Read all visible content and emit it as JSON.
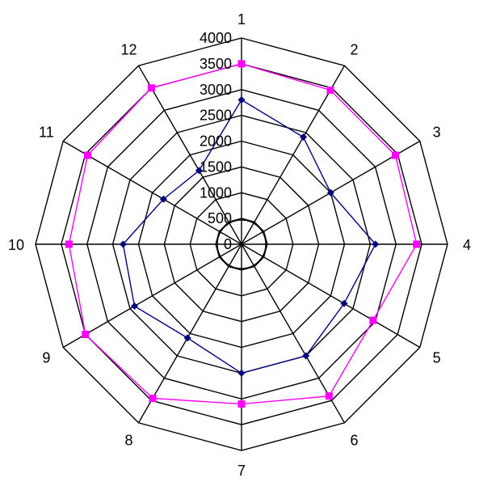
{
  "chart_data": {
    "type": "radar",
    "categories": [
      "1",
      "2",
      "3",
      "4",
      "5",
      "6",
      "7",
      "8",
      "9",
      "10",
      "11",
      "12"
    ],
    "rlim": [
      0,
      4000
    ],
    "ticks": [
      0,
      500,
      1000,
      1500,
      2000,
      2500,
      3000,
      3500,
      4000
    ],
    "tick_labels": [
      "0",
      "500",
      "1000",
      "1500",
      "2000",
      "2500",
      "3000",
      "3500",
      "4000"
    ],
    "grid": true,
    "legend": "none",
    "series": [
      {
        "color": "#000080",
        "marker": "diamond",
        "values": [
          2800,
          2400,
          2000,
          2600,
          2300,
          2500,
          2500,
          2100,
          2400,
          2300,
          1750,
          1650
        ]
      },
      {
        "color": "#ff00ff",
        "marker": "square",
        "values": [
          3500,
          3450,
          3450,
          3400,
          2950,
          3400,
          3100,
          3450,
          3500,
          3350,
          3450,
          3500
        ]
      }
    ]
  }
}
